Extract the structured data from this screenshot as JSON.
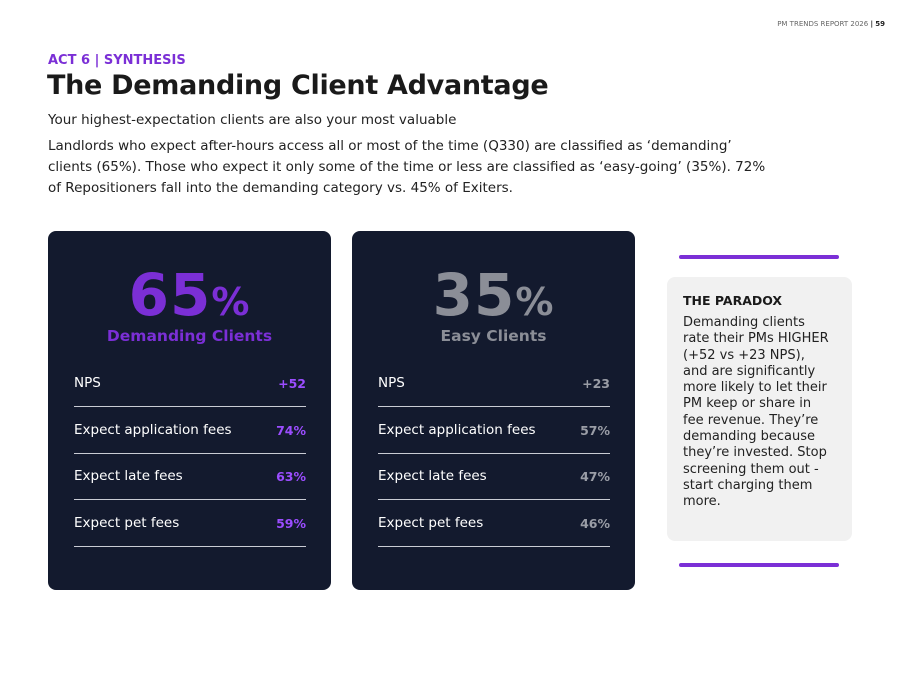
{
  "header": {
    "report": "PM TRENDS REPORT 2026",
    "separator": "|",
    "page": "59"
  },
  "kicker": {
    "act": "ACT 6",
    "separator": "|",
    "section": "SYNTHESIS"
  },
  "title": "The Demanding Client Advantage",
  "subtitle": "Your highest-expectation clients are also your most valuable",
  "body": "Landlords who expect after-hours access all or most of the time (Q330) are classified as ‘demanding’ clients (65%). Those who expect it only some of the time or less are classified as ‘easy-going’ (35%). 72% of Repositioners fall into the demanding category vs. 45% of Exiters.",
  "cards": [
    {
      "stat": "65",
      "unit": "%",
      "label": "Demanding Clients",
      "rows": [
        [
          "NPS",
          "+52"
        ],
        [
          "Expect application fees",
          "74%"
        ],
        [
          "Expect late fees",
          "63%"
        ],
        [
          "Expect pet fees",
          "59%"
        ]
      ]
    },
    {
      "stat": "35",
      "unit": "%",
      "label": "Easy Clients",
      "rows": [
        [
          "NPS",
          "+23"
        ],
        [
          "Expect application fees",
          "57%"
        ],
        [
          "Expect late fees",
          "47%"
        ],
        [
          "Expect pet fees",
          "46%"
        ]
      ]
    }
  ],
  "sidebar": {
    "heading": "THE PARADOX",
    "text": "Demanding clients rate their PMs HIGHER (+52 vs +23 NPS), and are significantly more likely to let their PM keep or share in fee revenue. They’re demanding because they’re invested. Stop screening them out - start charging them more."
  }
}
